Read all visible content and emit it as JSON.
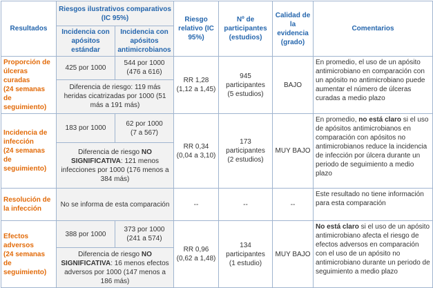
{
  "header": {
    "outcome": "Resultados",
    "risks": "Riesgos ilustrativos comparativos (IC 95%)",
    "standard": "Incidencia con apósitos estándar",
    "antimicrobial": "Incidencia con apósitos antimicrobianos",
    "relative_risk": "Riesgo relativo (IC 95%)",
    "participants": "Nº de participantes (estudios)",
    "quality": "Calidad de la evidencia (grado)",
    "comments": "Comentarios"
  },
  "rows": [
    {
      "outcome": "Proporción de úlceras curadas",
      "followup": "(24 semanas de seguimiento)",
      "standard": "425 por 1000",
      "antimicrobial": "544 por 1000",
      "antimicrobial_ci": "(476 a 616)",
      "difference": [
        {
          "text": "Diferencia de riesgo: 119 más heridas cicatrizadas por 1000 (51 más a 191 más)"
        }
      ],
      "relative_risk": "RR 1,28",
      "relative_risk_ci": "(1,12 a 1,45)",
      "participants": "945 participantes",
      "studies": "(5 estudios)",
      "quality": "BAJO",
      "comments": [
        {
          "text": "En promedio, el uso de un apósito antimicrobiano en comparación con un apósito no antimicrobiano puede aumentar el número de úlceras curadas a medio plazo"
        }
      ]
    },
    {
      "outcome": "Incidencia de infección",
      "followup": "(24 semanas de seguimiento)",
      "standard": "183 por 1000",
      "antimicrobial": "62 por 1000",
      "antimicrobial_ci": "(7 a 567)",
      "difference": [
        {
          "text": "Diferencia de riesgo "
        },
        {
          "text": "NO SIGNIFICATIVA",
          "bold": true
        },
        {
          "text": ": 121 menos infecciones por 1000 (176 menos a 384 más)"
        }
      ],
      "relative_risk": "RR 0,34",
      "relative_risk_ci": "(0,04 a 3,10)",
      "participants": "173 participantes",
      "studies": "(2 estudios)",
      "quality": "MUY BAJO",
      "comments": [
        {
          "text": "En promedio, "
        },
        {
          "text": "no está claro",
          "bold": true
        },
        {
          "text": " si el uso de apósitos antimicrobianos en comparación con apósitos no antimicrobianos reduce la incidencia de infección por úlcera durante un periodo de seguimiento a medio plazo"
        }
      ]
    },
    {
      "outcome": "Resolución de la infección",
      "comparison": "No se informa de esta comparación",
      "relative_risk": "--",
      "participants": "--",
      "quality": "--",
      "comments": [
        {
          "text": "Este resultado no tiene información para esta comparación"
        }
      ]
    },
    {
      "outcome": "Efectos adversos",
      "followup": "(24 semanas de seguimiento)",
      "standard": "388 por 1000",
      "antimicrobial": "373 por 1000",
      "antimicrobial_ci": "(241 a 574)",
      "difference": [
        {
          "text": "Diferencia de riesgo "
        },
        {
          "text": "NO SIGNIFICATIVA",
          "bold": true
        },
        {
          "text": ": 16 menos efectos adversos por 1000 (147 menos a 186 más)"
        }
      ],
      "relative_risk": "RR 0,96",
      "relative_risk_ci": "(0,62 a 1,48)",
      "participants": "134 participantes",
      "studies": "(1 estudio)",
      "quality": "MUY BAJO",
      "comments": [
        {
          "text": "No está claro",
          "bold": true
        },
        {
          "text": " si el uso de un apósito antimicrobiano afecta el riesgo de efectos adversos en comparación con el uso de un apósito no antimicrobiano durante un periodo de seguimiento a medio plazo"
        }
      ]
    }
  ]
}
